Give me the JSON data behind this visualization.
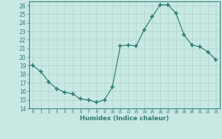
{
  "x": [
    0,
    1,
    2,
    3,
    4,
    5,
    6,
    7,
    8,
    9,
    10,
    11,
    12,
    13,
    14,
    15,
    16,
    17,
    18,
    19,
    20,
    21,
    22,
    23
  ],
  "y": [
    19,
    18.3,
    17.1,
    16.3,
    15.9,
    15.7,
    15.1,
    15.0,
    14.7,
    15.0,
    16.5,
    21.3,
    21.4,
    21.3,
    23.2,
    24.7,
    26.1,
    26.1,
    25.1,
    22.6,
    21.4,
    21.2,
    20.6,
    19.7
  ],
  "xlabel": "Humidex (Indice chaleur)",
  "ylim": [
    14,
    26.5
  ],
  "xlim": [
    -0.5,
    23.5
  ],
  "yticks": [
    14,
    15,
    16,
    17,
    18,
    19,
    20,
    21,
    22,
    23,
    24,
    25,
    26
  ],
  "xticks": [
    0,
    1,
    2,
    3,
    4,
    5,
    6,
    7,
    8,
    9,
    10,
    11,
    12,
    13,
    14,
    15,
    16,
    17,
    18,
    19,
    20,
    21,
    22,
    23
  ],
  "xtick_labels": [
    "0",
    "1",
    "2",
    "3",
    "4",
    "5",
    "6",
    "7",
    "8",
    "9",
    "10",
    "11",
    "12",
    "13",
    "14",
    "15",
    "16",
    "17",
    "18",
    "19",
    "20",
    "21",
    "22",
    "23"
  ],
  "line_color": "#2e7d6e",
  "marker": "+",
  "bg_color": "#c8e8e4",
  "grid_color": "#b0d0cc",
  "tick_color": "#2e7d6e",
  "label_color": "#2e7d6e",
  "spine_color": "#2e7d6e"
}
